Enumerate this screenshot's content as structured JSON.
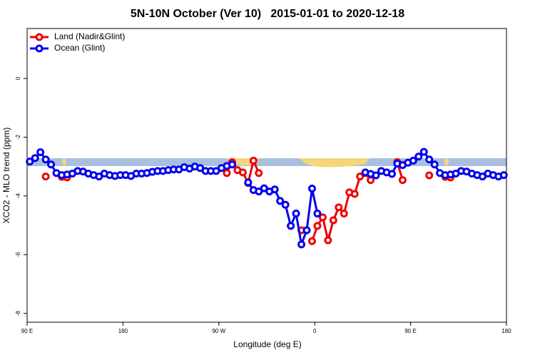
{
  "chart_data": {
    "type": "line",
    "title": "5N-10N October (Ver 10)   2015-01-01 to 2020-12-18",
    "x_label": "Longitude (deg E)",
    "y_label": "XCO2 - MLO trend (ppm)",
    "xlim": [
      90,
      540
    ],
    "ylim": [
      -8.3,
      1.7
    ],
    "xticks": [
      {
        "value": 90,
        "label": "90 E"
      },
      {
        "value": 180,
        "label": "180"
      },
      {
        "value": 270,
        "label": "90 W"
      },
      {
        "value": 360,
        "label": "0"
      },
      {
        "value": 450,
        "label": "90 E"
      },
      {
        "value": 540,
        "label": "180"
      }
    ],
    "yticks": [
      0,
      -2,
      -4,
      -6,
      -8
    ],
    "legend": "top-left",
    "x": [
      92.5,
      97.5,
      102.5,
      107.5,
      112.5,
      117.5,
      122.5,
      127.5,
      132.5,
      137.5,
      142.5,
      147.5,
      152.5,
      157.5,
      162.5,
      167.5,
      172.5,
      177.5,
      182.5,
      187.5,
      192.5,
      197.5,
      202.5,
      207.5,
      212.5,
      217.5,
      222.5,
      227.5,
      232.5,
      237.5,
      242.5,
      247.5,
      252.5,
      257.5,
      262.5,
      267.5,
      272.5,
      277.5,
      282.5,
      287.5,
      292.5,
      297.5,
      302.5,
      307.5,
      312.5,
      317.5,
      322.5,
      327.5,
      332.5,
      337.5,
      342.5,
      347.5,
      352.5,
      357.5,
      362.5,
      367.5,
      372.5,
      377.5,
      382.5,
      387.5,
      392.5,
      397.5,
      402.5,
      407.5,
      412.5,
      417.5,
      422.5,
      427.5,
      432.5,
      437.5,
      442.5,
      447.5,
      452.5,
      457.5,
      462.5,
      467.5,
      472.5,
      477.5,
      482.5,
      487.5,
      492.5,
      497.5,
      502.5,
      507.5,
      512.5,
      517.5,
      522.5,
      527.5,
      532.5,
      537.5
    ],
    "series": [
      {
        "name": "Land (Nadir&Glint)",
        "color": "#ee0000",
        "values": [
          null,
          null,
          null,
          -3.34,
          null,
          null,
          -3.35,
          -3.37,
          null,
          null,
          null,
          null,
          null,
          null,
          null,
          null,
          null,
          null,
          null,
          null,
          null,
          null,
          null,
          null,
          null,
          null,
          null,
          null,
          null,
          null,
          null,
          null,
          null,
          null,
          null,
          null,
          null,
          -3.22,
          -2.85,
          -3.12,
          -3.2,
          -3.56,
          -2.8,
          -3.22,
          null,
          null,
          null,
          null,
          null,
          null,
          null,
          -5.17,
          null,
          -5.54,
          -5.02,
          -4.73,
          -5.51,
          -4.83,
          -4.39,
          -4.6,
          -3.88,
          -3.93,
          -3.34,
          -3.22,
          -3.46,
          null,
          null,
          null,
          null,
          -2.85,
          -3.46,
          null,
          null,
          null,
          null,
          -3.3,
          null,
          null,
          -3.35,
          -3.37,
          null,
          null,
          null,
          null,
          null,
          null,
          null,
          null,
          null,
          null
        ]
      },
      {
        "name": "Ocean (Glint)",
        "color": "#0000ee",
        "values": [
          -2.83,
          -2.71,
          -2.51,
          -2.76,
          -2.93,
          -3.22,
          -3.29,
          -3.27,
          -3.24,
          -3.15,
          -3.17,
          -3.24,
          -3.29,
          -3.34,
          -3.24,
          -3.29,
          -3.32,
          -3.29,
          -3.29,
          -3.32,
          -3.24,
          -3.24,
          -3.22,
          -3.18,
          -3.15,
          -3.15,
          -3.12,
          -3.1,
          -3.1,
          -3.02,
          -3.07,
          -3.0,
          -3.05,
          -3.15,
          -3.15,
          -3.15,
          -3.05,
          -2.98,
          -2.93,
          null,
          null,
          -3.54,
          -3.8,
          -3.85,
          -3.74,
          -3.85,
          -3.78,
          -4.17,
          -4.3,
          -5.02,
          -4.6,
          -5.65,
          -5.17,
          -3.75,
          -4.6,
          null,
          null,
          null,
          null,
          null,
          null,
          null,
          null,
          -3.2,
          -3.25,
          -3.3,
          -3.15,
          -3.2,
          -3.25,
          -2.9,
          -2.95,
          -2.87,
          -2.8,
          -2.66,
          -2.5,
          -2.76,
          -2.93,
          -3.22,
          -3.29,
          -3.27,
          -3.24,
          -3.15,
          -3.17,
          -3.24,
          -3.29,
          -3.34,
          -3.24,
          -3.29,
          -3.34,
          -3.29
        ]
      }
    ]
  }
}
